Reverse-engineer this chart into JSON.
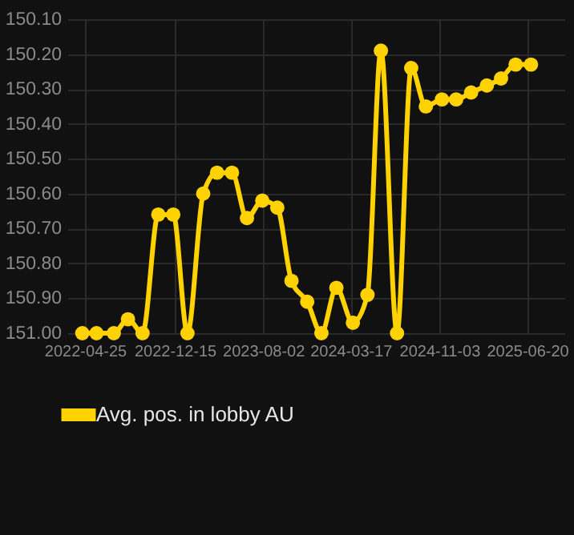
{
  "chart_data": {
    "type": "line",
    "x": [
      "2022-04-18",
      "2022-05-25",
      "2022-07-09",
      "2022-08-15",
      "2022-09-22",
      "2022-11-02",
      "2022-12-11",
      "2023-01-17",
      "2023-02-27",
      "2023-04-04",
      "2023-05-13",
      "2023-06-21",
      "2023-07-31",
      "2023-09-08",
      "2023-10-15",
      "2023-11-25",
      "2024-01-01",
      "2024-02-09",
      "2024-03-23",
      "2024-04-30",
      "2024-06-04",
      "2024-07-16",
      "2024-08-22",
      "2024-09-29",
      "2024-11-10",
      "2024-12-17",
      "2025-01-25",
      "2025-03-07",
      "2025-04-13",
      "2025-05-21",
      "2025-06-30"
    ],
    "series": [
      {
        "name": "Avg. pos. in lobby AU",
        "color": "#ffd200",
        "values": [
          151.0,
          151.0,
          151.0,
          150.96,
          151.0,
          150.66,
          150.66,
          151.0,
          150.6,
          150.54,
          150.54,
          150.67,
          150.62,
          150.64,
          150.85,
          150.91,
          151.0,
          150.87,
          150.97,
          150.89,
          150.19,
          151.0,
          150.24,
          150.35,
          150.33,
          150.33,
          150.31,
          150.29,
          150.27,
          150.23,
          150.23
        ]
      }
    ],
    "xlim": [
      "2022-03-10",
      "2025-09-25"
    ],
    "xticks": [
      "2022-04-25",
      "2022-12-15",
      "2023-08-02",
      "2024-03-17",
      "2024-11-03",
      "2025-06-20"
    ],
    "ylim": [
      151.0,
      150.1
    ],
    "yticks": [
      {
        "value": 150.1,
        "label": "150.10"
      },
      {
        "value": 150.2,
        "label": "150.20"
      },
      {
        "value": 150.3,
        "label": "150.30"
      },
      {
        "value": 150.4,
        "label": "150.40"
      },
      {
        "value": 150.5,
        "label": "150.50"
      },
      {
        "value": 150.6,
        "label": "150.60"
      },
      {
        "value": 150.7,
        "label": "150.70"
      },
      {
        "value": 150.8,
        "label": "150.80"
      },
      {
        "value": 150.9,
        "label": "150.90"
      },
      {
        "value": 151.0,
        "label": "151.00"
      }
    ],
    "grid": true,
    "legend": "bottom",
    "marker": "circle",
    "line_style": "solid"
  }
}
